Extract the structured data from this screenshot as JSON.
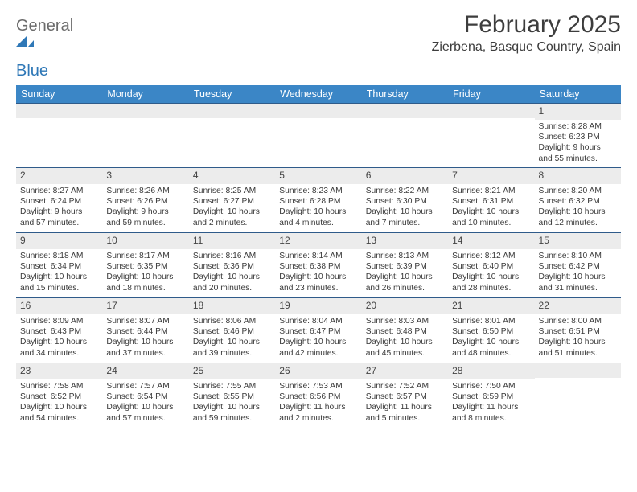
{
  "brand": {
    "word1": "General",
    "word2": "Blue"
  },
  "title": "February 2025",
  "location": "Zierbena, Basque Country, Spain",
  "colors": {
    "header_bg": "#3b86c6",
    "header_text": "#ffffff",
    "daynum_bg": "#ececec",
    "rule": "#2f5b8a",
    "brand_blue": "#2f78b7",
    "text": "#3a3a3a",
    "background": "#ffffff"
  },
  "typography": {
    "title_fontsize": 30,
    "location_fontsize": 16,
    "weekday_fontsize": 12.5,
    "daynum_fontsize": 12,
    "body_fontsize": 10.3
  },
  "weekdays": [
    "Sunday",
    "Monday",
    "Tuesday",
    "Wednesday",
    "Thursday",
    "Friday",
    "Saturday"
  ],
  "weeks": [
    [
      {
        "n": "",
        "lines": []
      },
      {
        "n": "",
        "lines": []
      },
      {
        "n": "",
        "lines": []
      },
      {
        "n": "",
        "lines": []
      },
      {
        "n": "",
        "lines": []
      },
      {
        "n": "",
        "lines": []
      },
      {
        "n": "1",
        "lines": [
          "Sunrise: 8:28 AM",
          "Sunset: 6:23 PM",
          "Daylight: 9 hours",
          "and 55 minutes."
        ]
      }
    ],
    [
      {
        "n": "2",
        "lines": [
          "Sunrise: 8:27 AM",
          "Sunset: 6:24 PM",
          "Daylight: 9 hours",
          "and 57 minutes."
        ]
      },
      {
        "n": "3",
        "lines": [
          "Sunrise: 8:26 AM",
          "Sunset: 6:26 PM",
          "Daylight: 9 hours",
          "and 59 minutes."
        ]
      },
      {
        "n": "4",
        "lines": [
          "Sunrise: 8:25 AM",
          "Sunset: 6:27 PM",
          "Daylight: 10 hours",
          "and 2 minutes."
        ]
      },
      {
        "n": "5",
        "lines": [
          "Sunrise: 8:23 AM",
          "Sunset: 6:28 PM",
          "Daylight: 10 hours",
          "and 4 minutes."
        ]
      },
      {
        "n": "6",
        "lines": [
          "Sunrise: 8:22 AM",
          "Sunset: 6:30 PM",
          "Daylight: 10 hours",
          "and 7 minutes."
        ]
      },
      {
        "n": "7",
        "lines": [
          "Sunrise: 8:21 AM",
          "Sunset: 6:31 PM",
          "Daylight: 10 hours",
          "and 10 minutes."
        ]
      },
      {
        "n": "8",
        "lines": [
          "Sunrise: 8:20 AM",
          "Sunset: 6:32 PM",
          "Daylight: 10 hours",
          "and 12 minutes."
        ]
      }
    ],
    [
      {
        "n": "9",
        "lines": [
          "Sunrise: 8:18 AM",
          "Sunset: 6:34 PM",
          "Daylight: 10 hours",
          "and 15 minutes."
        ]
      },
      {
        "n": "10",
        "lines": [
          "Sunrise: 8:17 AM",
          "Sunset: 6:35 PM",
          "Daylight: 10 hours",
          "and 18 minutes."
        ]
      },
      {
        "n": "11",
        "lines": [
          "Sunrise: 8:16 AM",
          "Sunset: 6:36 PM",
          "Daylight: 10 hours",
          "and 20 minutes."
        ]
      },
      {
        "n": "12",
        "lines": [
          "Sunrise: 8:14 AM",
          "Sunset: 6:38 PM",
          "Daylight: 10 hours",
          "and 23 minutes."
        ]
      },
      {
        "n": "13",
        "lines": [
          "Sunrise: 8:13 AM",
          "Sunset: 6:39 PM",
          "Daylight: 10 hours",
          "and 26 minutes."
        ]
      },
      {
        "n": "14",
        "lines": [
          "Sunrise: 8:12 AM",
          "Sunset: 6:40 PM",
          "Daylight: 10 hours",
          "and 28 minutes."
        ]
      },
      {
        "n": "15",
        "lines": [
          "Sunrise: 8:10 AM",
          "Sunset: 6:42 PM",
          "Daylight: 10 hours",
          "and 31 minutes."
        ]
      }
    ],
    [
      {
        "n": "16",
        "lines": [
          "Sunrise: 8:09 AM",
          "Sunset: 6:43 PM",
          "Daylight: 10 hours",
          "and 34 minutes."
        ]
      },
      {
        "n": "17",
        "lines": [
          "Sunrise: 8:07 AM",
          "Sunset: 6:44 PM",
          "Daylight: 10 hours",
          "and 37 minutes."
        ]
      },
      {
        "n": "18",
        "lines": [
          "Sunrise: 8:06 AM",
          "Sunset: 6:46 PM",
          "Daylight: 10 hours",
          "and 39 minutes."
        ]
      },
      {
        "n": "19",
        "lines": [
          "Sunrise: 8:04 AM",
          "Sunset: 6:47 PM",
          "Daylight: 10 hours",
          "and 42 minutes."
        ]
      },
      {
        "n": "20",
        "lines": [
          "Sunrise: 8:03 AM",
          "Sunset: 6:48 PM",
          "Daylight: 10 hours",
          "and 45 minutes."
        ]
      },
      {
        "n": "21",
        "lines": [
          "Sunrise: 8:01 AM",
          "Sunset: 6:50 PM",
          "Daylight: 10 hours",
          "and 48 minutes."
        ]
      },
      {
        "n": "22",
        "lines": [
          "Sunrise: 8:00 AM",
          "Sunset: 6:51 PM",
          "Daylight: 10 hours",
          "and 51 minutes."
        ]
      }
    ],
    [
      {
        "n": "23",
        "lines": [
          "Sunrise: 7:58 AM",
          "Sunset: 6:52 PM",
          "Daylight: 10 hours",
          "and 54 minutes."
        ]
      },
      {
        "n": "24",
        "lines": [
          "Sunrise: 7:57 AM",
          "Sunset: 6:54 PM",
          "Daylight: 10 hours",
          "and 57 minutes."
        ]
      },
      {
        "n": "25",
        "lines": [
          "Sunrise: 7:55 AM",
          "Sunset: 6:55 PM",
          "Daylight: 10 hours",
          "and 59 minutes."
        ]
      },
      {
        "n": "26",
        "lines": [
          "Sunrise: 7:53 AM",
          "Sunset: 6:56 PM",
          "Daylight: 11 hours",
          "and 2 minutes."
        ]
      },
      {
        "n": "27",
        "lines": [
          "Sunrise: 7:52 AM",
          "Sunset: 6:57 PM",
          "Daylight: 11 hours",
          "and 5 minutes."
        ]
      },
      {
        "n": "28",
        "lines": [
          "Sunrise: 7:50 AM",
          "Sunset: 6:59 PM",
          "Daylight: 11 hours",
          "and 8 minutes."
        ]
      },
      {
        "n": "",
        "lines": []
      }
    ]
  ]
}
